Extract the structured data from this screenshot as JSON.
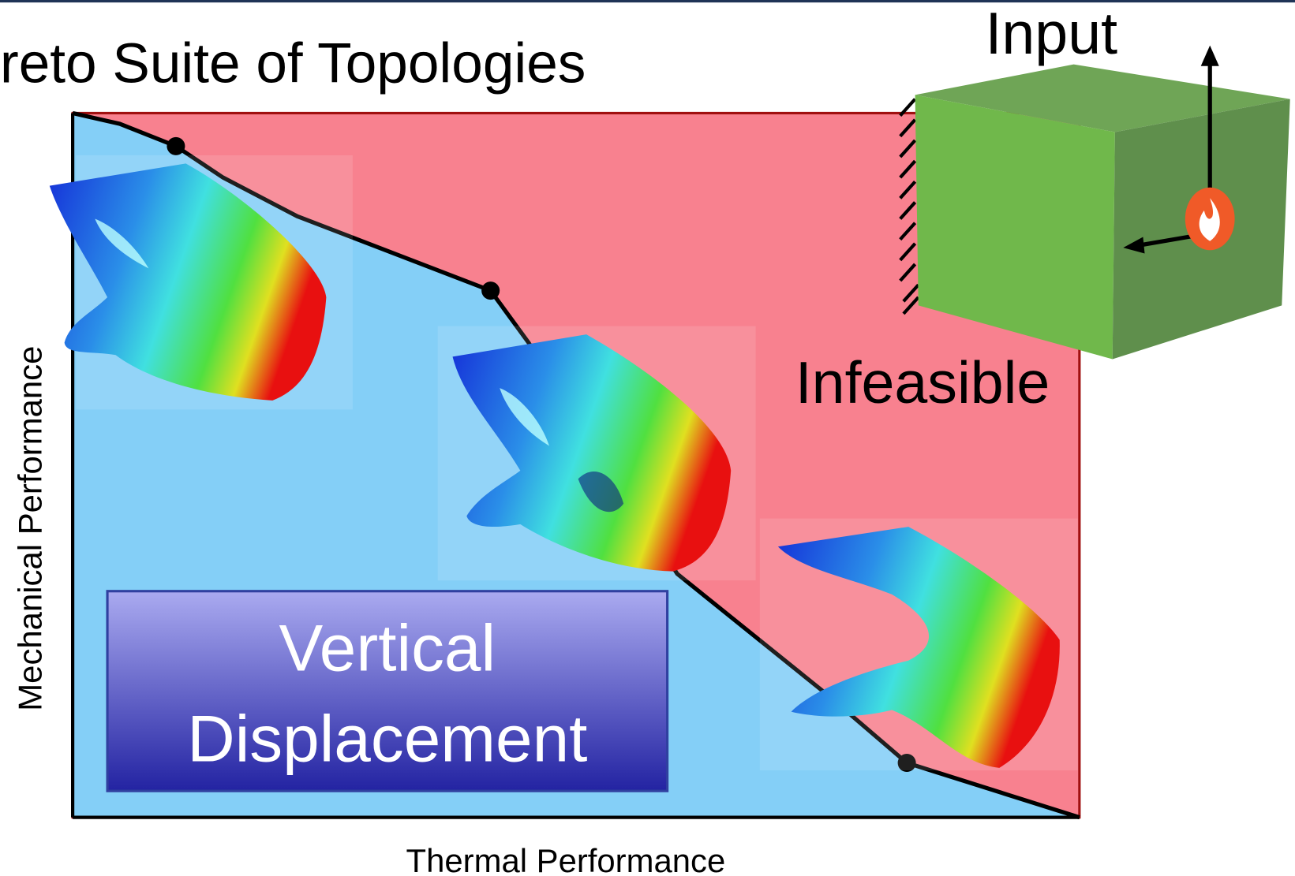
{
  "title": "reto Suite of Topologies",
  "input_label": "Input",
  "infeasible_label": "Infeasible",
  "mode_box": {
    "lines": [
      "Vertical",
      "Displacement"
    ]
  },
  "axes": {
    "y_label": "Mechanical Performance",
    "x_label": "Thermal Performance"
  }
}
